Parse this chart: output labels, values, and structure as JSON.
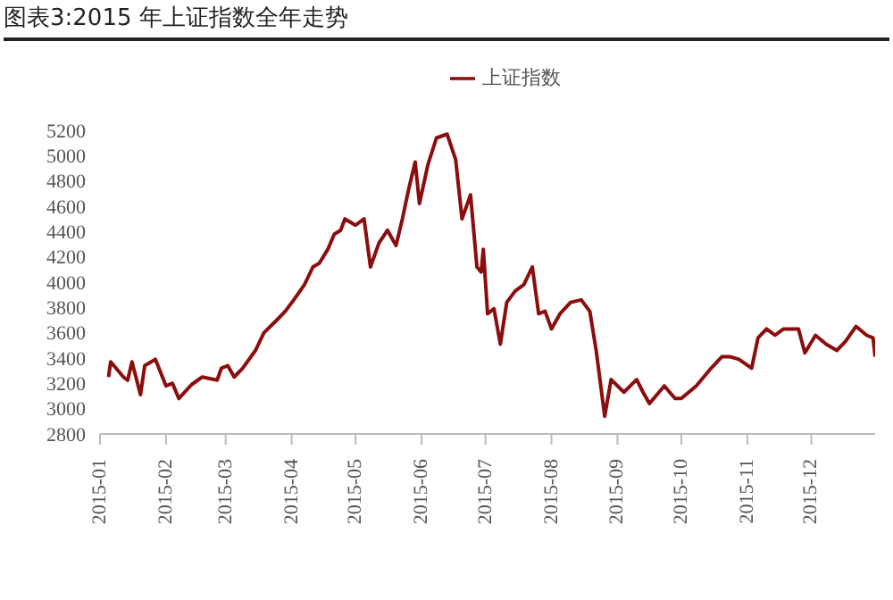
{
  "chart_data": {
    "type": "line",
    "title": "图表3:2015 年上证指数全年走势",
    "x": [
      "2015-01-05",
      "2015-01-06",
      "2015-01-12",
      "2015-01-14",
      "2015-01-16",
      "2015-01-20",
      "2015-01-22",
      "2015-01-27",
      "2015-02-01",
      "2015-02-04",
      "2015-02-07",
      "2015-02-13",
      "2015-02-18",
      "2015-02-25",
      "2015-02-27",
      "2015-03-02",
      "2015-03-05",
      "2015-03-09",
      "2015-03-15",
      "2015-03-19",
      "2015-03-25",
      "2015-03-29",
      "2015-04-02",
      "2015-04-07",
      "2015-04-11",
      "2015-04-14",
      "2015-04-18",
      "2015-04-21",
      "2015-04-24",
      "2015-04-26",
      "2015-05-01",
      "2015-05-05",
      "2015-05-08",
      "2015-05-12",
      "2015-05-16",
      "2015-05-20",
      "2015-05-23",
      "2015-05-26",
      "2015-05-29",
      "2015-05-31",
      "2015-06-04",
      "2015-06-08",
      "2015-06-13",
      "2015-06-17",
      "2015-06-20",
      "2015-06-24",
      "2015-06-27",
      "2015-06-29",
      "2015-06-30",
      "2015-07-02",
      "2015-07-05",
      "2015-07-08",
      "2015-07-11",
      "2015-07-15",
      "2015-07-19",
      "2015-07-23",
      "2015-07-26",
      "2015-07-29",
      "2015-08-01",
      "2015-08-05",
      "2015-08-10",
      "2015-08-15",
      "2015-08-19",
      "2015-08-22",
      "2015-08-26",
      "2015-08-29",
      "2015-09-04",
      "2015-09-10",
      "2015-09-13",
      "2015-09-16",
      "2015-09-23",
      "2015-09-28",
      "2015-10-01",
      "2015-10-08",
      "2015-10-15",
      "2015-10-20",
      "2015-10-24",
      "2015-10-28",
      "2015-11-03",
      "2015-11-06",
      "2015-11-10",
      "2015-11-14",
      "2015-11-18",
      "2015-11-25",
      "2015-11-28",
      "2015-12-03",
      "2015-12-08",
      "2015-12-13",
      "2015-12-17",
      "2015-12-22",
      "2015-12-27",
      "2015-12-30",
      "2015-12-31"
    ],
    "series": [
      {
        "name": "上证指数",
        "color": "#8b0d0d",
        "values": [
          3250,
          3370,
          3250,
          3225,
          3370,
          3110,
          3340,
          3390,
          3180,
          3200,
          3080,
          3190,
          3250,
          3225,
          3320,
          3340,
          3250,
          3320,
          3460,
          3600,
          3700,
          3770,
          3860,
          3980,
          4120,
          4150,
          4260,
          4380,
          4410,
          4500,
          4450,
          4500,
          4120,
          4310,
          4410,
          4290,
          4500,
          4740,
          4950,
          4620,
          4930,
          5140,
          5170,
          4970,
          4500,
          4690,
          4120,
          4080,
          4260,
          3750,
          3790,
          3510,
          3840,
          3930,
          3980,
          4120,
          3750,
          3770,
          3630,
          3750,
          3840,
          3860,
          3770,
          3460,
          2940,
          3230,
          3130,
          3230,
          3130,
          3040,
          3180,
          3080,
          3080,
          3180,
          3320,
          3410,
          3410,
          3390,
          3320,
          3560,
          3630,
          3580,
          3630,
          3630,
          3440,
          3580,
          3510,
          3460,
          3530,
          3650,
          3580,
          3560,
          3410
        ]
      }
    ],
    "xlim": [
      "2015-01-01",
      "2015-12-31"
    ],
    "xticks": [
      "2015-01",
      "2015-02",
      "2015-03",
      "2015-04",
      "2015-05",
      "2015-06",
      "2015-07",
      "2015-08",
      "2015-09",
      "2015-10",
      "2015-11",
      "2015-12"
    ],
    "ylim": [
      2800,
      5200
    ],
    "yticks": [
      2800,
      3000,
      3200,
      3400,
      3600,
      3800,
      4000,
      4200,
      4400,
      4600,
      4800,
      5000,
      5200
    ],
    "legend": "top",
    "grid": false,
    "marker": "none",
    "line_style": "solid"
  }
}
